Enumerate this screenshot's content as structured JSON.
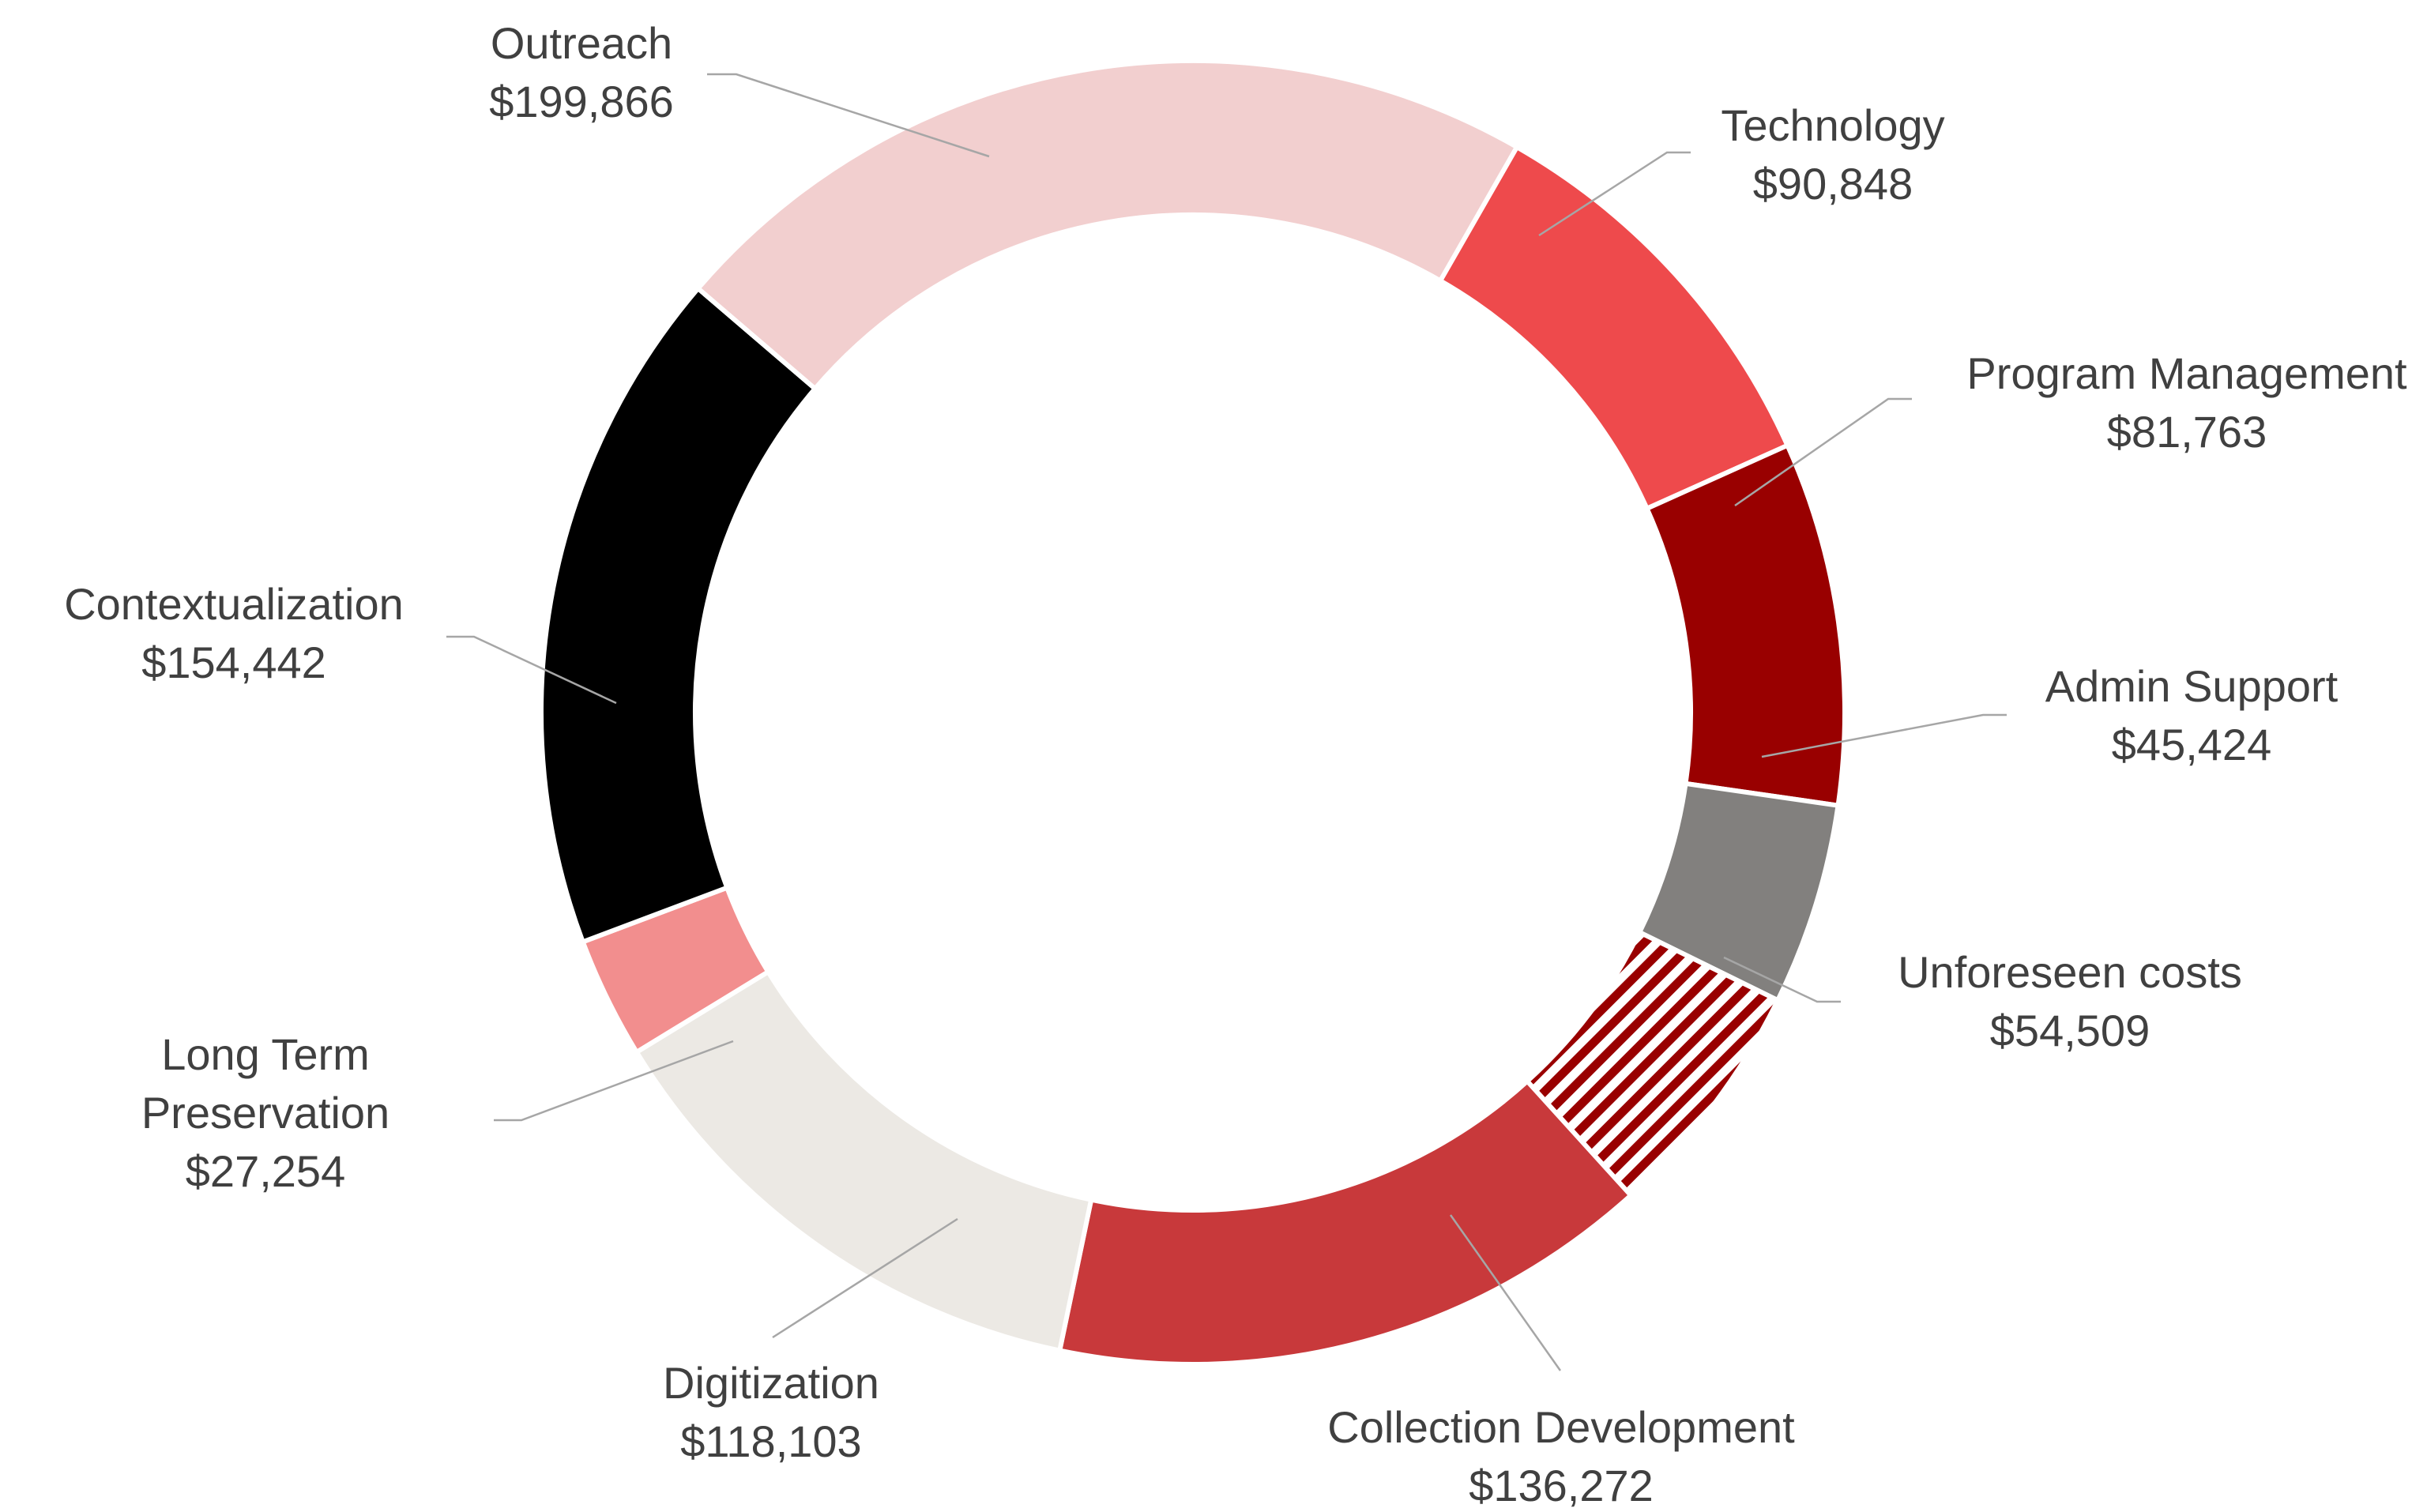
{
  "chart_data": {
    "type": "pie",
    "subtype": "doughnut",
    "title": "",
    "currency_prefix": "$",
    "series": [
      {
        "name": "",
        "slices": [
          {
            "label": "Technology",
            "value_label": "$90,848",
            "value": 90848,
            "color": "#ee4a4c"
          },
          {
            "label": "Program Management",
            "value_label": "$81,763",
            "value": 81763,
            "color": "#990000"
          },
          {
            "label": "Admin Support",
            "value_label": "$45,424",
            "value": 45424,
            "color": "#82807e"
          },
          {
            "label": "Unforeseen costs",
            "value_label": "$54,509",
            "value": 54509,
            "color": "#990000",
            "pattern": "diagonal-stripes"
          },
          {
            "label": "Collection Development",
            "value_label": "$136,272",
            "value": 136272,
            "color": "#c8393b"
          },
          {
            "label": "Digitization",
            "value_label": "$118,103",
            "value": 118103,
            "color": "#ece9e4"
          },
          {
            "label": "Long Term Preservation",
            "value_label": "$27,254",
            "value": 27254,
            "color": "#f28e8e"
          },
          {
            "label": "Contextualization",
            "value_label": "$154,442",
            "value": 154442,
            "color": "#000000"
          },
          {
            "label": "Outreach",
            "value_label": "$199,866",
            "value": 199866,
            "color": "#f2cfcf"
          }
        ]
      }
    ],
    "legend": "none",
    "data_labels": "outside-with-leader-lines"
  }
}
